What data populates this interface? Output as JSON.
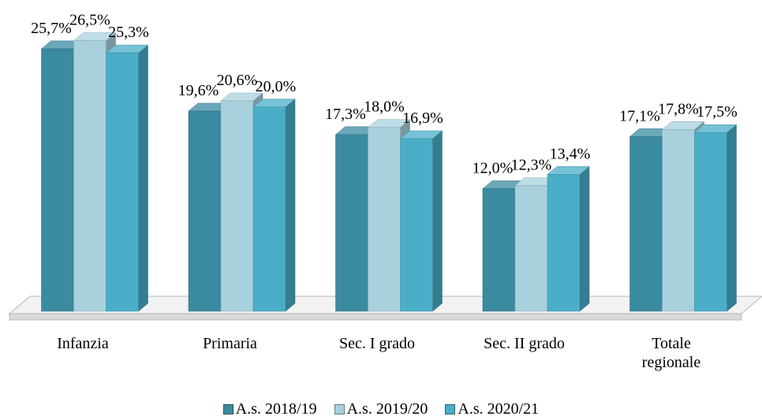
{
  "chart_data": {
    "type": "bar3d",
    "categories": [
      "Infanzia",
      "Primaria",
      "Sec. I grado",
      "Sec. II grado",
      "Totale regionale"
    ],
    "series": [
      {
        "name": "A.s. 2018/19",
        "color": "#3a8aa0",
        "values": [
          25.7,
          19.6,
          17.3,
          12.0,
          17.1
        ],
        "value_labels": [
          "25,7%",
          "19,6%",
          "17,3%",
          "12,0%",
          "17,1%"
        ]
      },
      {
        "name": "A.s. 2019/20",
        "color": "#a9d1dd",
        "values": [
          26.5,
          20.6,
          18.0,
          12.3,
          17.8
        ],
        "value_labels": [
          "26,5%",
          "20,6%",
          "18,0%",
          "12,3%",
          "17,8%"
        ]
      },
      {
        "name": "A.s. 2020/21",
        "color": "#4aaec8",
        "values": [
          25.3,
          20.0,
          16.9,
          13.4,
          17.5
        ],
        "value_labels": [
          "25,3%",
          "20,0%",
          "16,9%",
          "13,4%",
          "17,5%"
        ]
      }
    ],
    "legend": "bottom"
  }
}
